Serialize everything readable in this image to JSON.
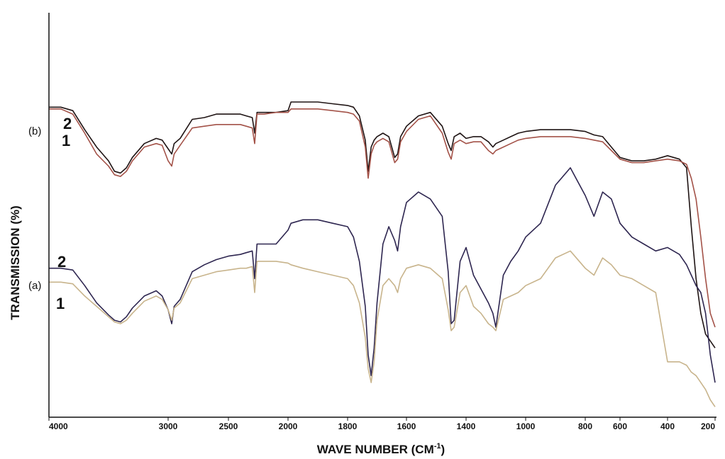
{
  "chart_data": {
    "type": "line",
    "xlabel": "WAVE NUMBER (CM",
    "xlabel_sup": "-1",
    "xlabel_close": ")",
    "ylabel": "TRANSMISSION (%)",
    "x_reversed": true,
    "x_ticks": [
      {
        "value": 4000,
        "label": "4000"
      },
      {
        "value": 3000,
        "label": "3000"
      },
      {
        "value": 2500,
        "label": "2500"
      },
      {
        "value": 2000,
        "label": "2000"
      },
      {
        "value": 1800,
        "label": "1800"
      },
      {
        "value": 1600,
        "label": "1600"
      },
      {
        "value": 1400,
        "label": "1400"
      },
      {
        "value": 1000,
        "label": "1000"
      },
      {
        "value": 800,
        "label": "800"
      },
      {
        "value": 600,
        "label": "600"
      },
      {
        "value": 400,
        "label": "400"
      },
      {
        "value": 200,
        "label": "200"
      }
    ],
    "ylim": [
      0,
      100
    ],
    "grid": false,
    "panels": [
      {
        "label": "(b)",
        "series_labels": [
          "2",
          "1"
        ]
      },
      {
        "label": "(a)",
        "series_labels": [
          "2",
          "1"
        ]
      }
    ],
    "series": [
      {
        "color": "#1f1414",
        "x": [
          4000,
          3900,
          3800,
          3700,
          3600,
          3500,
          3450,
          3400,
          3350,
          3300,
          3200,
          3100,
          3050,
          3000,
          2970,
          2950,
          2900,
          2800,
          2700,
          2600,
          2500,
          2400,
          2350,
          2300,
          2280,
          2260,
          2200,
          2100,
          2000,
          1990,
          1950,
          1900,
          1850,
          1800,
          1780,
          1760,
          1740,
          1730,
          1720,
          1710,
          1700,
          1680,
          1660,
          1640,
          1630,
          1620,
          1600,
          1560,
          1520,
          1480,
          1460,
          1450,
          1440,
          1420,
          1400,
          1350,
          1300,
          1250,
          1220,
          1200,
          1150,
          1100,
          1050,
          1000,
          950,
          900,
          850,
          800,
          750,
          700,
          650,
          600,
          550,
          500,
          450,
          400,
          350,
          320,
          300,
          280,
          260,
          240,
          220,
          200
        ],
        "y": [
          89.5,
          89.5,
          88.5,
          83,
          78,
          74,
          71,
          70.5,
          72,
          75,
          79,
          80.5,
          80,
          77.5,
          76,
          79,
          80.5,
          86,
          86.5,
          87.5,
          87.5,
          87.5,
          87,
          86.5,
          82,
          88,
          88,
          88,
          88.5,
          91,
          91,
          91,
          90.5,
          90,
          89.5,
          87,
          80,
          71,
          78,
          80,
          81,
          82,
          81,
          75,
          76,
          81,
          84,
          87,
          88,
          84,
          79,
          77,
          81,
          82,
          80.5,
          81,
          81,
          79.5,
          78,
          79,
          80,
          81,
          82,
          82.5,
          83,
          83,
          83,
          82.5,
          81.5,
          81,
          78,
          75,
          74,
          74,
          74.5,
          75.5,
          74.5,
          72,
          55,
          40,
          30,
          24,
          22,
          20
        ]
      },
      {
        "color": "#a35248",
        "x": [
          4000,
          3900,
          3800,
          3700,
          3600,
          3500,
          3450,
          3400,
          3350,
          3300,
          3200,
          3100,
          3050,
          3000,
          2970,
          2950,
          2900,
          2800,
          2700,
          2600,
          2500,
          2400,
          2350,
          2300,
          2280,
          2260,
          2200,
          2100,
          2000,
          1990,
          1950,
          1900,
          1850,
          1800,
          1780,
          1760,
          1740,
          1730,
          1720,
          1710,
          1700,
          1680,
          1660,
          1640,
          1630,
          1620,
          1600,
          1560,
          1520,
          1480,
          1460,
          1450,
          1440,
          1420,
          1400,
          1350,
          1300,
          1250,
          1220,
          1200,
          1150,
          1100,
          1050,
          1000,
          950,
          900,
          850,
          800,
          750,
          700,
          650,
          600,
          550,
          500,
          450,
          400,
          350,
          320,
          300,
          280,
          260,
          240,
          220,
          200
        ],
        "y": [
          89,
          89,
          87.5,
          82,
          76,
          72.5,
          70,
          69.5,
          71,
          74,
          78,
          79,
          78.5,
          74,
          72.5,
          76,
          78.5,
          83.5,
          84,
          84.5,
          84.5,
          84.5,
          84,
          83.5,
          79,
          87.5,
          87.5,
          88,
          88,
          89,
          89,
          89,
          88.5,
          88,
          87.5,
          85.5,
          78,
          69,
          76,
          78.5,
          79.5,
          80.5,
          79.5,
          73.5,
          74.5,
          79.5,
          82.5,
          86,
          87,
          82,
          76.5,
          74.5,
          79,
          80,
          79,
          79.5,
          79.5,
          77,
          76,
          77,
          78,
          79,
          80,
          80.5,
          81,
          81,
          81,
          80.5,
          80,
          79.5,
          77,
          74.5,
          73.5,
          73.5,
          74,
          74.5,
          74,
          73,
          69,
          63,
          52,
          40,
          30,
          26
        ]
      },
      {
        "color": "#2e2650",
        "x": [
          4000,
          3900,
          3800,
          3700,
          3600,
          3500,
          3450,
          3400,
          3350,
          3300,
          3200,
          3100,
          3050,
          3000,
          2970,
          2950,
          2900,
          2800,
          2700,
          2600,
          2500,
          2400,
          2350,
          2300,
          2280,
          2260,
          2200,
          2100,
          2000,
          1990,
          1950,
          1900,
          1850,
          1800,
          1780,
          1760,
          1740,
          1730,
          1720,
          1710,
          1700,
          1680,
          1660,
          1640,
          1630,
          1620,
          1600,
          1560,
          1520,
          1480,
          1460,
          1450,
          1440,
          1420,
          1400,
          1350,
          1300,
          1250,
          1220,
          1200,
          1150,
          1100,
          1050,
          1000,
          950,
          900,
          850,
          800,
          750,
          700,
          650,
          600,
          550,
          500,
          450,
          400,
          350,
          320,
          300,
          280,
          260,
          240,
          220,
          200
        ],
        "y": [
          43,
          43,
          42.5,
          38,
          33,
          29.5,
          28,
          27.5,
          29,
          31.5,
          35,
          36.5,
          35,
          31,
          27,
          32,
          34,
          42,
          44,
          45.5,
          46.5,
          47,
          47.5,
          48,
          40,
          50,
          50,
          50,
          54,
          56,
          57,
          57,
          56,
          55,
          52,
          45,
          32,
          18,
          12,
          20,
          33,
          50,
          55,
          51,
          48,
          55,
          62,
          65,
          63,
          58,
          42,
          27,
          28,
          45,
          49,
          41,
          37,
          33,
          30,
          26,
          41,
          45,
          48,
          52,
          56,
          67,
          72,
          64,
          58,
          65,
          63,
          56,
          52,
          50,
          48,
          49,
          47,
          44,
          41,
          38,
          36,
          30,
          18,
          10
        ]
      },
      {
        "color": "#c8b48c",
        "x": [
          4000,
          3900,
          3800,
          3700,
          3600,
          3500,
          3450,
          3400,
          3350,
          3300,
          3200,
          3100,
          3050,
          3000,
          2970,
          2950,
          2900,
          2800,
          2700,
          2600,
          2500,
          2400,
          2350,
          2300,
          2280,
          2260,
          2200,
          2100,
          2000,
          1990,
          1950,
          1900,
          1850,
          1800,
          1780,
          1760,
          1740,
          1730,
          1720,
          1710,
          1700,
          1680,
          1660,
          1640,
          1630,
          1620,
          1600,
          1560,
          1520,
          1480,
          1460,
          1450,
          1440,
          1420,
          1400,
          1350,
          1300,
          1250,
          1220,
          1200,
          1150,
          1100,
          1050,
          1000,
          950,
          900,
          850,
          800,
          750,
          700,
          650,
          600,
          550,
          500,
          450,
          400,
          350,
          320,
          300,
          280,
          260,
          240,
          220,
          200
        ],
        "y": [
          39,
          39,
          38.5,
          35,
          32,
          29,
          27.5,
          27,
          28,
          30,
          33.5,
          35,
          34,
          31,
          28,
          31.5,
          33,
          40,
          41,
          42,
          42.5,
          43,
          43,
          43.5,
          36,
          45,
          45,
          45,
          44.5,
          44,
          43,
          42,
          41,
          40,
          38,
          33,
          23,
          14,
          10,
          16,
          28,
          38,
          40,
          38,
          36,
          40,
          43,
          44,
          43,
          40,
          31,
          25,
          26,
          36,
          38,
          32,
          30,
          27,
          26,
          25,
          34,
          35,
          36,
          38,
          40,
          46,
          48,
          43,
          41,
          46,
          44,
          41,
          40,
          38,
          36,
          16,
          16,
          15,
          13,
          12,
          10,
          8,
          5,
          3
        ]
      }
    ]
  }
}
